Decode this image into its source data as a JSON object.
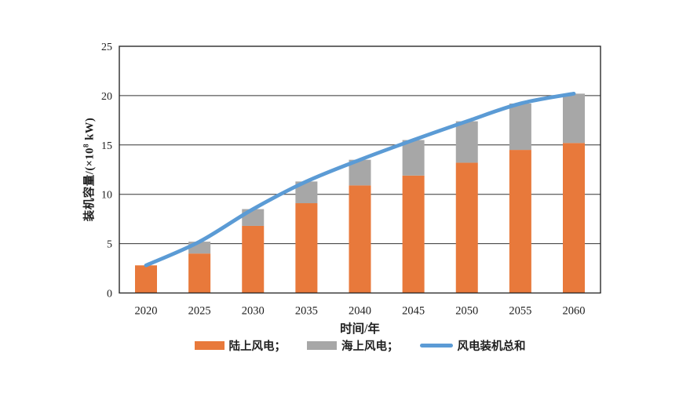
{
  "figure": {
    "background": "#ffffff",
    "axis_color": "#2b2b2b",
    "text_color": "#1f1f1f"
  },
  "chart_data": {
    "type": "bar",
    "variant": "stacked-bars-with-total-line",
    "title": "",
    "xlabel": "时间/年",
    "ylabel": "装机容量/(×10⁸ kW)",
    "ylabel_parts": {
      "prefix": "装机容量/(×10",
      "sup": "8",
      "suffix": " kW)"
    },
    "categories": [
      "2020",
      "2025",
      "2030",
      "2035",
      "2040",
      "2045",
      "2050",
      "2055",
      "2060"
    ],
    "series": [
      {
        "name": "陆上风电",
        "type": "bar",
        "stack": "wind",
        "color": "#E8793B",
        "values": [
          2.8,
          4.0,
          6.8,
          9.1,
          10.9,
          11.9,
          13.2,
          14.5,
          15.2
        ]
      },
      {
        "name": "海上风电",
        "type": "bar",
        "stack": "wind",
        "color": "#A7A7A7",
        "values": [
          0,
          1.2,
          1.7,
          2.2,
          2.6,
          3.6,
          4.2,
          4.7,
          5.0
        ]
      },
      {
        "name": "风电装机总和",
        "type": "line",
        "color": "#5B9BD5",
        "values": [
          2.8,
          5.2,
          8.5,
          11.3,
          13.5,
          15.5,
          17.4,
          19.2,
          20.2
        ]
      }
    ],
    "ylim": [
      0,
      25
    ],
    "yticks": [
      0,
      5,
      10,
      15,
      20,
      25
    ],
    "grid": true,
    "grid_axis": "y",
    "legend_position": "bottom"
  },
  "legend": {
    "items": [
      {
        "label": "陆上风电；",
        "swatch": "rect",
        "color": "#E8793B"
      },
      {
        "label": "海上风电；",
        "swatch": "rect",
        "color": "#A7A7A7"
      },
      {
        "label": "风电装机总和",
        "swatch": "line",
        "color": "#5B9BD5"
      }
    ]
  }
}
